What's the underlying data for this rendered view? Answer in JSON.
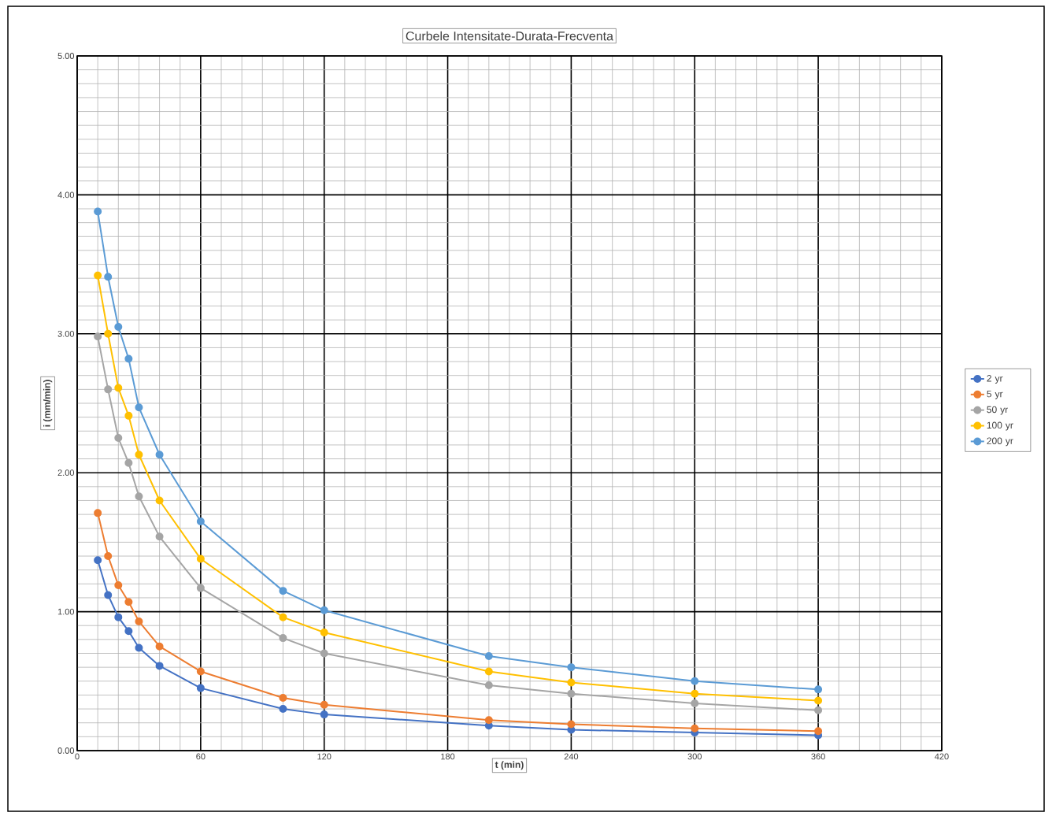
{
  "chart_data": {
    "type": "line",
    "title": "Curbele Intensitate-Durata-Frecventa",
    "xlabel": "t (min)",
    "ylabel": "i (mm/min)",
    "x": [
      10,
      15,
      20,
      25,
      30,
      40,
      60,
      100,
      120,
      200,
      240,
      300,
      360
    ],
    "series": [
      {
        "name": "2 yr",
        "color": "#4472c4",
        "values": [
          1.37,
          1.12,
          0.96,
          0.86,
          0.74,
          0.61,
          0.45,
          0.3,
          0.26,
          0.18,
          0.15,
          0.13,
          0.11
        ]
      },
      {
        "name": "5 yr",
        "color": "#ed7d31",
        "values": [
          1.71,
          1.4,
          1.19,
          1.07,
          0.93,
          0.75,
          0.57,
          0.38,
          0.33,
          0.22,
          0.19,
          0.16,
          0.14
        ]
      },
      {
        "name": "50 yr",
        "color": "#a5a5a5",
        "values": [
          2.98,
          2.6,
          2.25,
          2.07,
          1.83,
          1.54,
          1.17,
          0.81,
          0.7,
          0.47,
          0.41,
          0.34,
          0.29
        ]
      },
      {
        "name": "100 yr",
        "color": "#ffc000",
        "values": [
          3.42,
          3.0,
          2.61,
          2.41,
          2.13,
          1.8,
          1.38,
          0.96,
          0.85,
          0.57,
          0.49,
          0.41,
          0.36
        ]
      },
      {
        "name": "200 yr",
        "color": "#5b9bd5",
        "values": [
          3.88,
          3.41,
          3.05,
          2.82,
          2.47,
          2.13,
          1.65,
          1.15,
          1.01,
          0.68,
          0.6,
          0.5,
          0.44
        ]
      }
    ],
    "xlim": [
      0,
      420
    ],
    "xticks": [
      0,
      60,
      120,
      180,
      240,
      300,
      360,
      420
    ],
    "ylim": [
      0,
      5
    ],
    "yticks": [
      {
        "value": 0,
        "label": "0.00"
      },
      {
        "value": 1,
        "label": "1.00"
      },
      {
        "value": 2,
        "label": "2.00"
      },
      {
        "value": 3,
        "label": "3.00"
      },
      {
        "value": 4,
        "label": "4.00"
      },
      {
        "value": 5,
        "label": "5.00"
      }
    ],
    "grid": true,
    "legend": "right",
    "marker": "circle",
    "line_style": "solid"
  }
}
